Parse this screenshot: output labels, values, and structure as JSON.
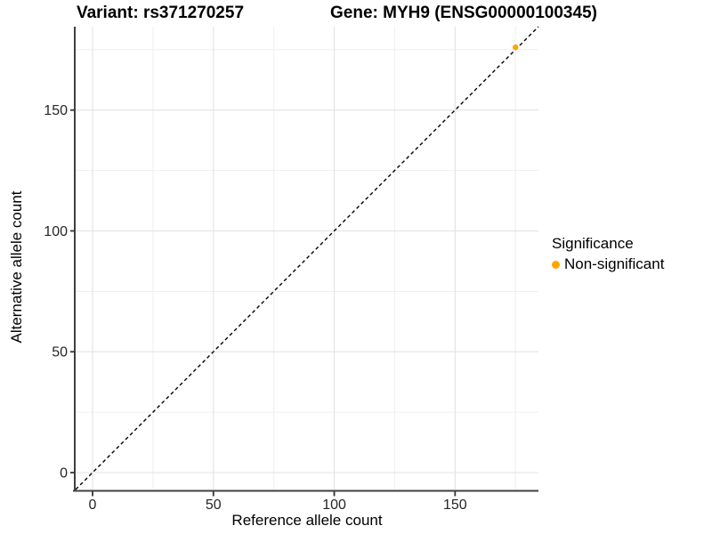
{
  "title": {
    "variant": "Variant: rs371270257",
    "gene": "Gene: MYH9 (ENSG00000100345)"
  },
  "axes": {
    "x_label": "Reference allele count",
    "y_label": "Alternative allele count"
  },
  "legend": {
    "title": "Significance",
    "position": "right",
    "items": [
      {
        "label": "Non-significant",
        "color": "#FFA500",
        "marker": "circle"
      }
    ]
  },
  "colors": {
    "background": "#ffffff",
    "point": "#FFA500",
    "axis_line": "#404040",
    "tick_mark": "#333333",
    "tick_label": "#262626",
    "grid_major": "#e3e3e3",
    "grid_minor": "#efefef",
    "reference_line": "#000000"
  },
  "chart_data": {
    "type": "scatter",
    "title": "Variant: rs371270257 | Gene: MYH9 (ENSG00000100345)",
    "xlabel": "Reference allele count",
    "ylabel": "Alternative allele count",
    "xlim": [
      -7,
      184.5
    ],
    "ylim": [
      -7,
      184.5
    ],
    "x_ticks": [
      0,
      50,
      100,
      150
    ],
    "y_ticks": [
      0,
      50,
      100,
      150
    ],
    "x_minor_ticks": [
      25,
      75,
      125,
      175
    ],
    "y_minor_ticks": [
      25,
      75,
      125,
      175
    ],
    "grid": "major+minor",
    "legend_position": "right",
    "series": [
      {
        "name": "Non-significant",
        "color": "#FFA500",
        "points": [
          {
            "x": 175,
            "y": 176
          }
        ]
      }
    ],
    "reference_line": {
      "type": "identity y=x",
      "style": "dashed",
      "color": "#000000"
    }
  }
}
